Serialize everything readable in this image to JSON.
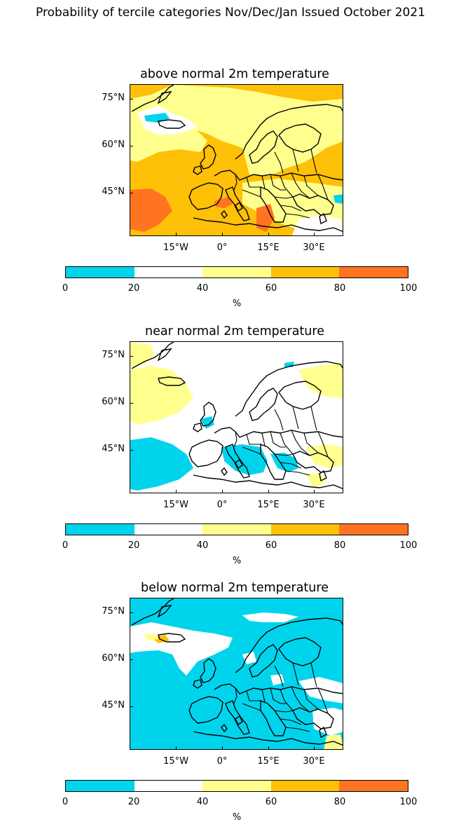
{
  "title": "Probability of tercile categories Nov/Dec/Jan Issued October 2021",
  "colors": {
    "c0_20": "#00d4ec",
    "c20_40": "#ffffff",
    "c40_60": "#ffff8e",
    "c60_80": "#ffc008",
    "c80_100": "#ff7420"
  },
  "lat_labels": [
    "75°N",
    "60°N",
    "45°N"
  ],
  "lon_labels": [
    "15°W",
    "0°",
    "15°E",
    "30°E"
  ],
  "colorbar": {
    "ticks": [
      "0",
      "20",
      "40",
      "60",
      "80",
      "100"
    ],
    "unit": "%"
  },
  "panels": [
    {
      "id": "above",
      "title": "above normal 2m temperature",
      "dominant": "c60_80"
    },
    {
      "id": "near",
      "title": "near normal 2m temperature",
      "dominant": "c20_40"
    },
    {
      "id": "below",
      "title": "below normal 2m temperature",
      "dominant": "c0_20"
    }
  ]
}
